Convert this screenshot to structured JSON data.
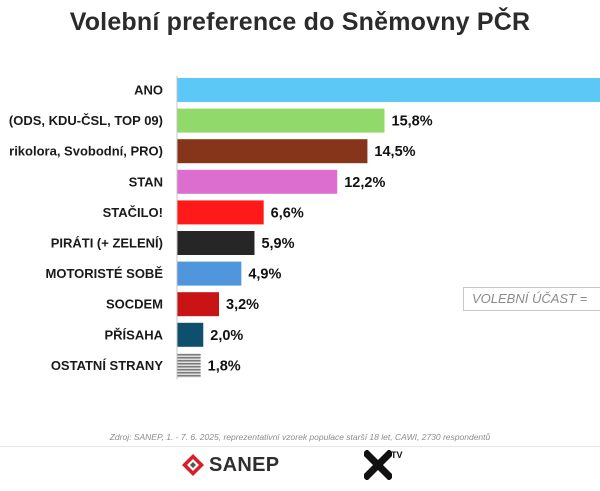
{
  "chart_data": {
    "type": "bar",
    "orientation": "horizontal",
    "title": "Volební preference do Sněmovny PČR",
    "categories": [
      "ANO",
      "(ODS, KDU-ČSL, TOP 09)",
      "rikolora, Svobodní, PRO)",
      "STAN",
      "STAČILO!",
      "PIRÁTI (+ ZELENÍ)",
      "MOTORISTÉ SOBĚ",
      "SOCDEM",
      "PŘÍSAHA",
      "OSTATNÍ STRANY"
    ],
    "values": [
      null,
      15.8,
      14.5,
      12.2,
      6.6,
      5.9,
      4.9,
      3.2,
      2.0,
      1.8
    ],
    "value_labels": [
      "",
      "15,8%",
      "14,5%",
      "12,2%",
      "6,6%",
      "5,9%",
      "4,9%",
      "3,2%",
      "2,0%",
      "1,8%"
    ],
    "colors": [
      "#5bc8f5",
      "#90d96a",
      "#86341a",
      "#dc6ed0",
      "#ff1a1a",
      "#262626",
      "#5096dc",
      "#c81414",
      "#0e4f6e",
      "#8a8a8a"
    ],
    "xlabel": "",
    "ylabel": "",
    "grid": false,
    "legend": "none"
  },
  "annotations": {
    "turnout": "VOLEBNÍ ÚČAST ="
  },
  "source": "Zdroj: SANEP, 1. - 7. 6. 2025, reprezentativní vzorek populace starší 18 let, CAWI, 2730 respondentů",
  "logos": {
    "sanep": "SANEP",
    "tv_mark": "X",
    "tv_sup": "TV"
  }
}
